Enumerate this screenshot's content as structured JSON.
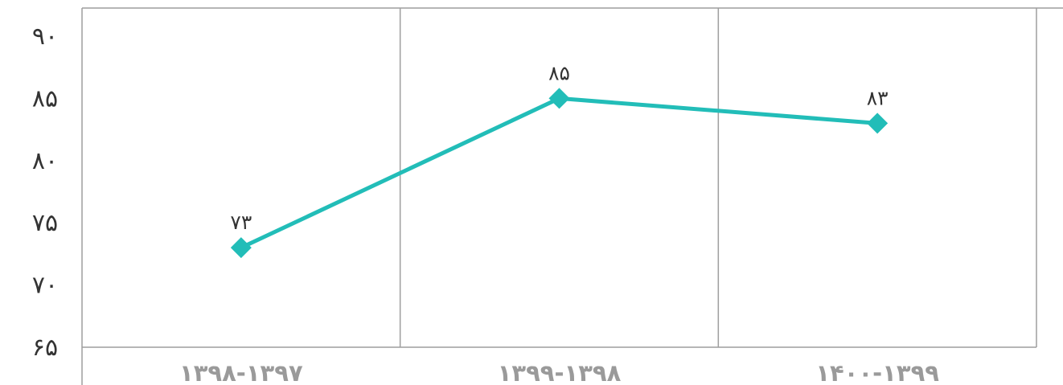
{
  "chart_data": {
    "type": "line",
    "title": "",
    "xlabel": "",
    "ylabel": "",
    "categories": [
      "۱۳۹۸-۱۳۹۷",
      "۱۳۹۹-۱۳۹۸",
      "۱۴۰۰-۱۳۹۹"
    ],
    "series": [
      {
        "values": [
          73,
          85,
          83
        ],
        "value_labels": [
          "۷۳",
          "۸۵",
          "۸۳"
        ]
      }
    ],
    "ylim": [
      65,
      90
    ],
    "y_ticks": [
      65,
      70,
      75,
      80,
      85,
      90
    ],
    "y_tick_labels": [
      "۶۵",
      "۷۰",
      "۷۵",
      "۸۰",
      "۸۵",
      "۹۰"
    ],
    "grid": "vertical",
    "legend": "none",
    "colors": {
      "series": "#22bdb8",
      "grid": "#9e9e9e",
      "tick_text": "#333333",
      "category_text": "#9a9a9a"
    },
    "marker": "diamond-icon"
  }
}
